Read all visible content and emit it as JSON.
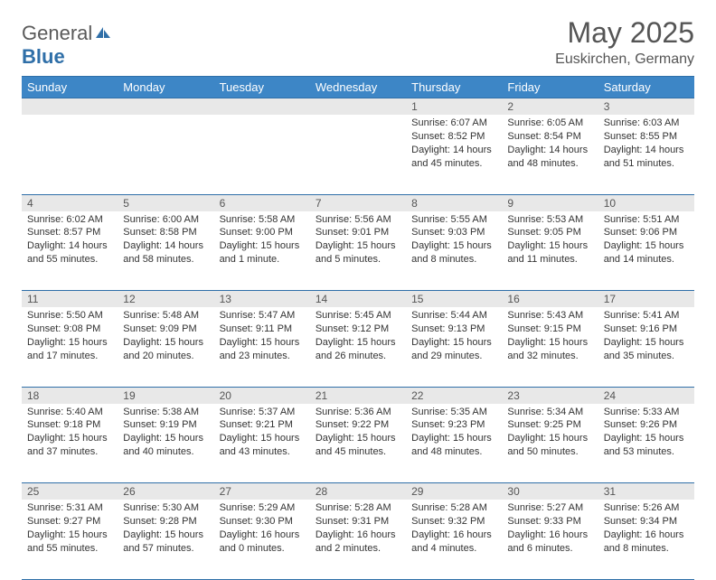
{
  "logo": {
    "text1": "General",
    "text2": "Blue"
  },
  "title": "May 2025",
  "location": "Euskirchen, Germany",
  "colors": {
    "header_bg": "#3d86c6",
    "header_border": "#2f6fa8",
    "daynum_bg": "#e8e8e8",
    "text": "#333333",
    "title_text": "#555555"
  },
  "weekdays": [
    "Sunday",
    "Monday",
    "Tuesday",
    "Wednesday",
    "Thursday",
    "Friday",
    "Saturday"
  ],
  "weeks": [
    {
      "nums": [
        "",
        "",
        "",
        "",
        "1",
        "2",
        "3"
      ],
      "cells": [
        null,
        null,
        null,
        null,
        {
          "sunrise": "Sunrise: 6:07 AM",
          "sunset": "Sunset: 8:52 PM",
          "daylight": "Daylight: 14 hours and 45 minutes."
        },
        {
          "sunrise": "Sunrise: 6:05 AM",
          "sunset": "Sunset: 8:54 PM",
          "daylight": "Daylight: 14 hours and 48 minutes."
        },
        {
          "sunrise": "Sunrise: 6:03 AM",
          "sunset": "Sunset: 8:55 PM",
          "daylight": "Daylight: 14 hours and 51 minutes."
        }
      ]
    },
    {
      "nums": [
        "4",
        "5",
        "6",
        "7",
        "8",
        "9",
        "10"
      ],
      "cells": [
        {
          "sunrise": "Sunrise: 6:02 AM",
          "sunset": "Sunset: 8:57 PM",
          "daylight": "Daylight: 14 hours and 55 minutes."
        },
        {
          "sunrise": "Sunrise: 6:00 AM",
          "sunset": "Sunset: 8:58 PM",
          "daylight": "Daylight: 14 hours and 58 minutes."
        },
        {
          "sunrise": "Sunrise: 5:58 AM",
          "sunset": "Sunset: 9:00 PM",
          "daylight": "Daylight: 15 hours and 1 minute."
        },
        {
          "sunrise": "Sunrise: 5:56 AM",
          "sunset": "Sunset: 9:01 PM",
          "daylight": "Daylight: 15 hours and 5 minutes."
        },
        {
          "sunrise": "Sunrise: 5:55 AM",
          "sunset": "Sunset: 9:03 PM",
          "daylight": "Daylight: 15 hours and 8 minutes."
        },
        {
          "sunrise": "Sunrise: 5:53 AM",
          "sunset": "Sunset: 9:05 PM",
          "daylight": "Daylight: 15 hours and 11 minutes."
        },
        {
          "sunrise": "Sunrise: 5:51 AM",
          "sunset": "Sunset: 9:06 PM",
          "daylight": "Daylight: 15 hours and 14 minutes."
        }
      ]
    },
    {
      "nums": [
        "11",
        "12",
        "13",
        "14",
        "15",
        "16",
        "17"
      ],
      "cells": [
        {
          "sunrise": "Sunrise: 5:50 AM",
          "sunset": "Sunset: 9:08 PM",
          "daylight": "Daylight: 15 hours and 17 minutes."
        },
        {
          "sunrise": "Sunrise: 5:48 AM",
          "sunset": "Sunset: 9:09 PM",
          "daylight": "Daylight: 15 hours and 20 minutes."
        },
        {
          "sunrise": "Sunrise: 5:47 AM",
          "sunset": "Sunset: 9:11 PM",
          "daylight": "Daylight: 15 hours and 23 minutes."
        },
        {
          "sunrise": "Sunrise: 5:45 AM",
          "sunset": "Sunset: 9:12 PM",
          "daylight": "Daylight: 15 hours and 26 minutes."
        },
        {
          "sunrise": "Sunrise: 5:44 AM",
          "sunset": "Sunset: 9:13 PM",
          "daylight": "Daylight: 15 hours and 29 minutes."
        },
        {
          "sunrise": "Sunrise: 5:43 AM",
          "sunset": "Sunset: 9:15 PM",
          "daylight": "Daylight: 15 hours and 32 minutes."
        },
        {
          "sunrise": "Sunrise: 5:41 AM",
          "sunset": "Sunset: 9:16 PM",
          "daylight": "Daylight: 15 hours and 35 minutes."
        }
      ]
    },
    {
      "nums": [
        "18",
        "19",
        "20",
        "21",
        "22",
        "23",
        "24"
      ],
      "cells": [
        {
          "sunrise": "Sunrise: 5:40 AM",
          "sunset": "Sunset: 9:18 PM",
          "daylight": "Daylight: 15 hours and 37 minutes."
        },
        {
          "sunrise": "Sunrise: 5:38 AM",
          "sunset": "Sunset: 9:19 PM",
          "daylight": "Daylight: 15 hours and 40 minutes."
        },
        {
          "sunrise": "Sunrise: 5:37 AM",
          "sunset": "Sunset: 9:21 PM",
          "daylight": "Daylight: 15 hours and 43 minutes."
        },
        {
          "sunrise": "Sunrise: 5:36 AM",
          "sunset": "Sunset: 9:22 PM",
          "daylight": "Daylight: 15 hours and 45 minutes."
        },
        {
          "sunrise": "Sunrise: 5:35 AM",
          "sunset": "Sunset: 9:23 PM",
          "daylight": "Daylight: 15 hours and 48 minutes."
        },
        {
          "sunrise": "Sunrise: 5:34 AM",
          "sunset": "Sunset: 9:25 PM",
          "daylight": "Daylight: 15 hours and 50 minutes."
        },
        {
          "sunrise": "Sunrise: 5:33 AM",
          "sunset": "Sunset: 9:26 PM",
          "daylight": "Daylight: 15 hours and 53 minutes."
        }
      ]
    },
    {
      "nums": [
        "25",
        "26",
        "27",
        "28",
        "29",
        "30",
        "31"
      ],
      "cells": [
        {
          "sunrise": "Sunrise: 5:31 AM",
          "sunset": "Sunset: 9:27 PM",
          "daylight": "Daylight: 15 hours and 55 minutes."
        },
        {
          "sunrise": "Sunrise: 5:30 AM",
          "sunset": "Sunset: 9:28 PM",
          "daylight": "Daylight: 15 hours and 57 minutes."
        },
        {
          "sunrise": "Sunrise: 5:29 AM",
          "sunset": "Sunset: 9:30 PM",
          "daylight": "Daylight: 16 hours and 0 minutes."
        },
        {
          "sunrise": "Sunrise: 5:28 AM",
          "sunset": "Sunset: 9:31 PM",
          "daylight": "Daylight: 16 hours and 2 minutes."
        },
        {
          "sunrise": "Sunrise: 5:28 AM",
          "sunset": "Sunset: 9:32 PM",
          "daylight": "Daylight: 16 hours and 4 minutes."
        },
        {
          "sunrise": "Sunrise: 5:27 AM",
          "sunset": "Sunset: 9:33 PM",
          "daylight": "Daylight: 16 hours and 6 minutes."
        },
        {
          "sunrise": "Sunrise: 5:26 AM",
          "sunset": "Sunset: 9:34 PM",
          "daylight": "Daylight: 16 hours and 8 minutes."
        }
      ]
    }
  ]
}
